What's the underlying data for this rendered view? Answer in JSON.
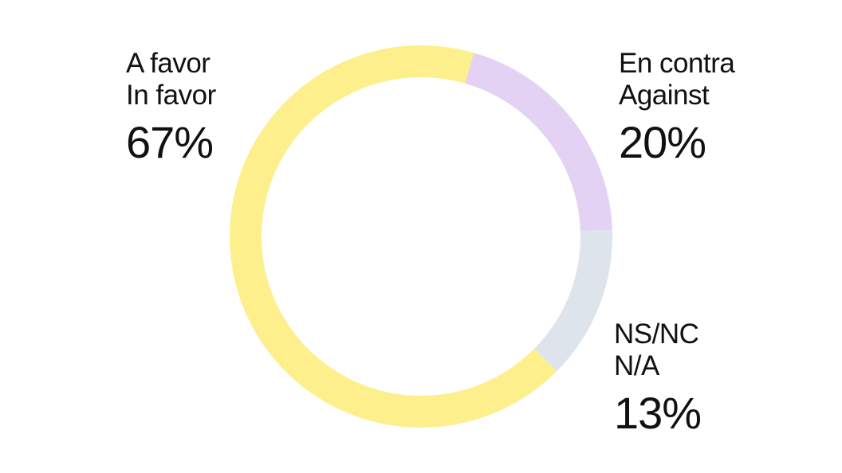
{
  "chart_data": {
    "type": "pie",
    "donut": true,
    "slices": [
      {
        "label_es": "En contra",
        "label_en": "Against",
        "value": 20,
        "value_label": "20%",
        "color": "#e3d2f3"
      },
      {
        "label_es": "NS/NC",
        "label_en": "N/A",
        "value": 13,
        "value_label": "13%",
        "color": "#dde4ec"
      },
      {
        "label_es": "A favor",
        "label_en": "In favor",
        "value": 67,
        "value_label": "67%",
        "color": "#fdf08c"
      }
    ]
  }
}
